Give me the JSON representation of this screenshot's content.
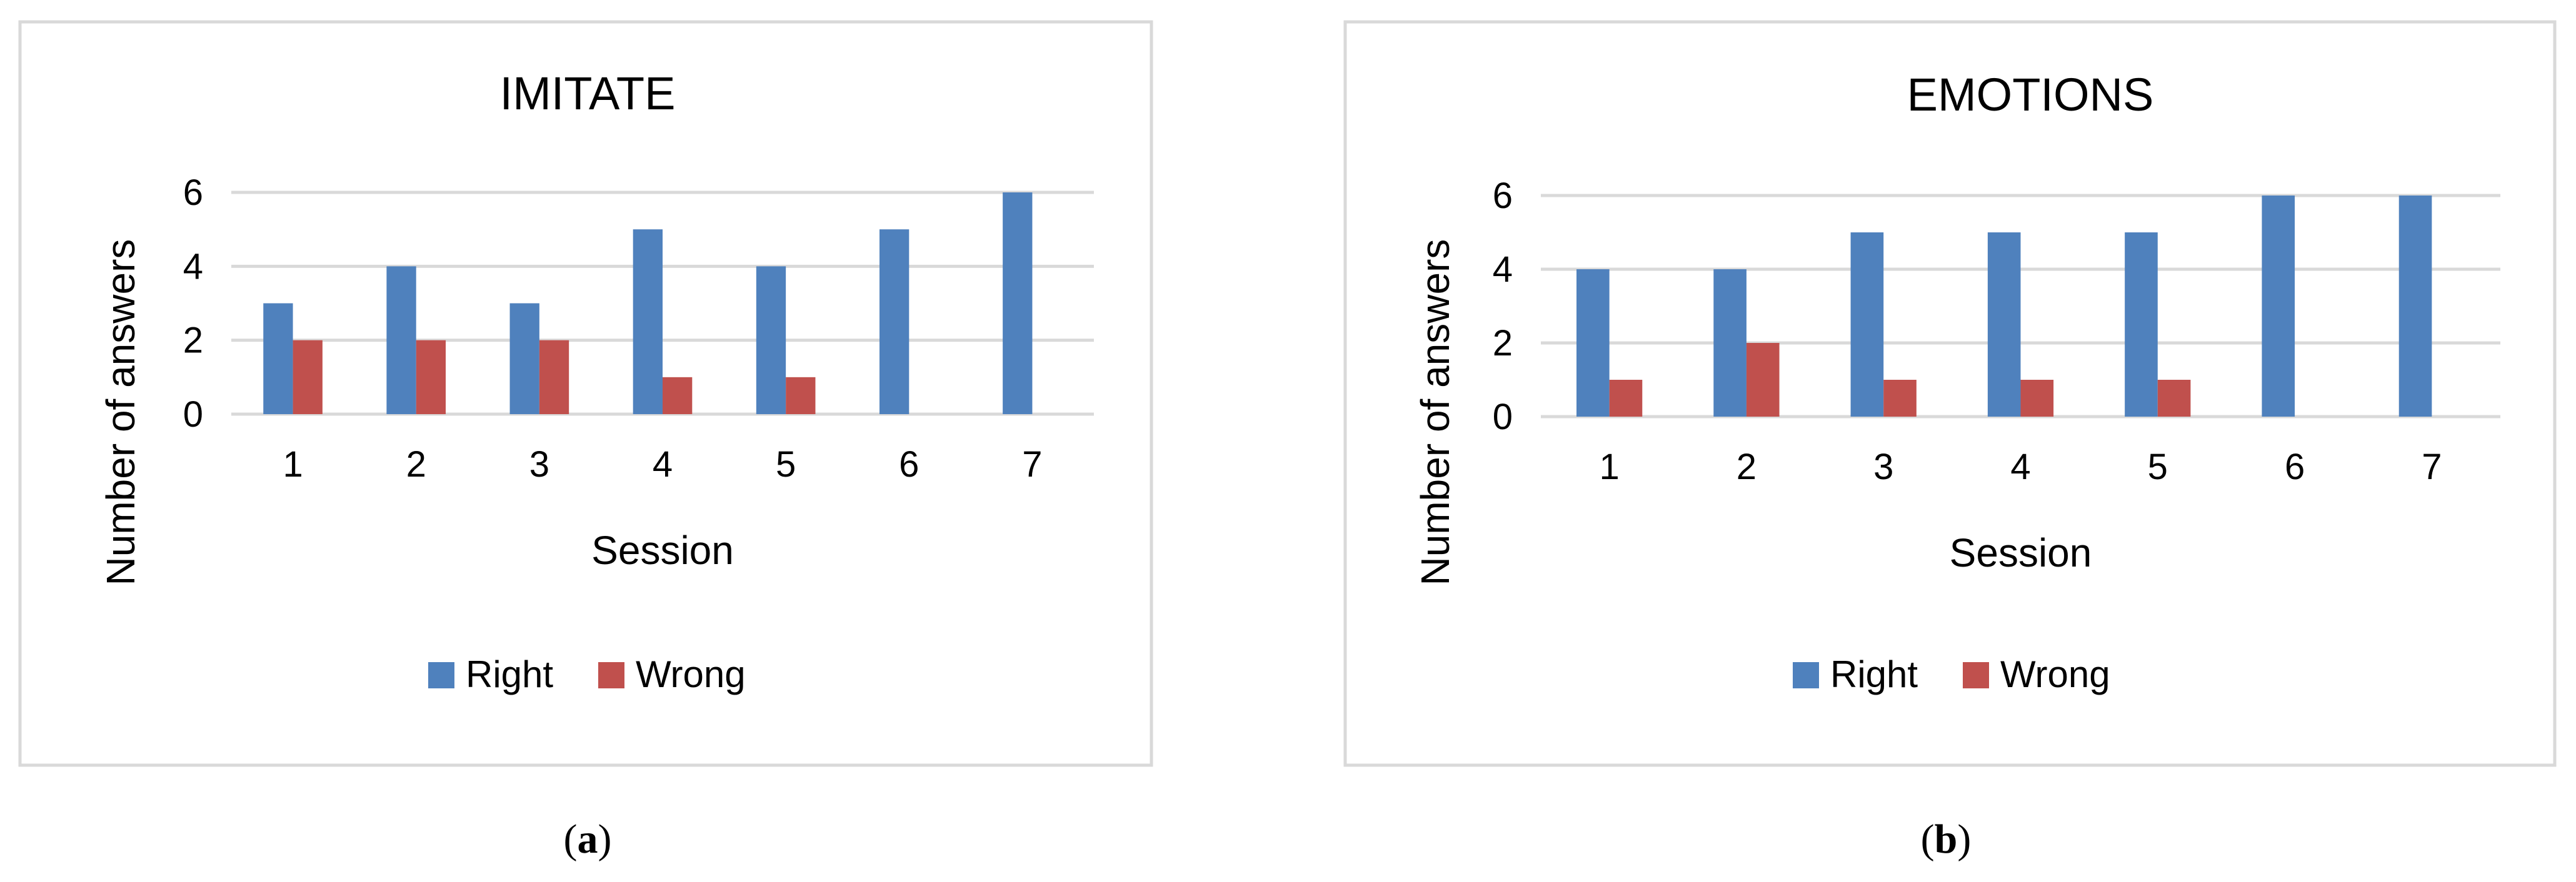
{
  "chart_data": [
    {
      "type": "bar",
      "title": "IMITATE",
      "xlabel": "Session",
      "ylabel": "Number of answers",
      "categories": [
        "1",
        "2",
        "3",
        "4",
        "5",
        "6",
        "7"
      ],
      "series": [
        {
          "name": "Right",
          "values": [
            3,
            4,
            3,
            5,
            4,
            5,
            6
          ],
          "color": "#4f81bd"
        },
        {
          "name": "Wrong",
          "values": [
            2,
            2,
            2,
            1,
            1,
            0,
            0
          ],
          "color": "#c0504d"
        }
      ],
      "ylim": [
        0,
        6
      ],
      "yticks": [
        "0",
        "2",
        "4",
        "6"
      ],
      "grid": true,
      "legend": "bottom",
      "caption_letter": "a"
    },
    {
      "type": "bar",
      "title": "EMOTIONS",
      "xlabel": "Session",
      "ylabel": "Number of answers",
      "categories": [
        "1",
        "2",
        "3",
        "4",
        "5",
        "6",
        "7"
      ],
      "series": [
        {
          "name": "Right",
          "values": [
            4,
            4,
            5,
            5,
            5,
            6,
            6
          ],
          "color": "#4f81bd"
        },
        {
          "name": "Wrong",
          "values": [
            1,
            2,
            1,
            1,
            1,
            0,
            0
          ],
          "color": "#c0504d"
        }
      ],
      "ylim": [
        0,
        6
      ],
      "yticks": [
        "0",
        "2",
        "4",
        "6"
      ],
      "grid": true,
      "legend": "bottom",
      "caption_letter": "b"
    }
  ]
}
